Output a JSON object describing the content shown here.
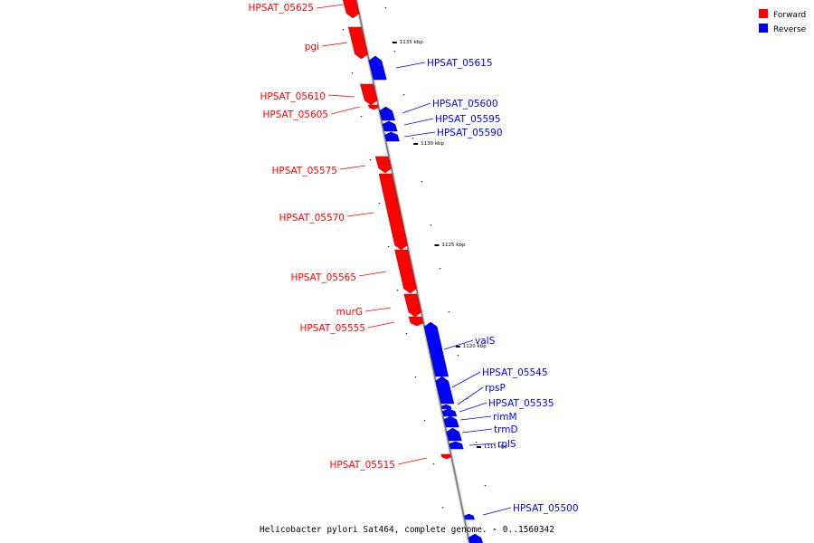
{
  "caption": "Helicobacter pylori Sat464, complete genome. - 0..1560342",
  "legend": [
    {
      "label": "Forward",
      "color": "#ff0000"
    },
    {
      "label": "Reverse",
      "color": "#0000ff"
    }
  ],
  "colors": {
    "forward": "#ff0000",
    "reverse": "#0000ff",
    "backbone": "#808080"
  },
  "tick_labels": [
    "1135 kbp",
    "1130 kbp",
    "1125 kbp",
    "1120 kbp",
    "1115 kbp"
  ],
  "genes": [
    {
      "label": "HPSAT_05625",
      "strand": "forward"
    },
    {
      "label": "pgi",
      "strand": "forward"
    },
    {
      "label": "HPSAT_05615",
      "strand": "reverse"
    },
    {
      "label": "HPSAT_05610",
      "strand": "forward"
    },
    {
      "label": "HPSAT_05605",
      "strand": "forward"
    },
    {
      "label": "HPSAT_05600",
      "strand": "reverse"
    },
    {
      "label": "HPSAT_05595",
      "strand": "reverse"
    },
    {
      "label": "HPSAT_05590",
      "strand": "reverse"
    },
    {
      "label": "HPSAT_05575",
      "strand": "forward"
    },
    {
      "label": "HPSAT_05570",
      "strand": "forward"
    },
    {
      "label": "HPSAT_05565",
      "strand": "forward"
    },
    {
      "label": "murG",
      "strand": "forward"
    },
    {
      "label": "HPSAT_05555",
      "strand": "forward"
    },
    {
      "label": "valS",
      "strand": "reverse"
    },
    {
      "label": "HPSAT_05545",
      "strand": "reverse"
    },
    {
      "label": "rpsP",
      "strand": "reverse"
    },
    {
      "label": "HPSAT_05535",
      "strand": "reverse"
    },
    {
      "label": "rimM",
      "strand": "reverse"
    },
    {
      "label": "trmD",
      "strand": "reverse"
    },
    {
      "label": "rplS",
      "strand": "reverse"
    },
    {
      "label": "HPSAT_05515",
      "strand": "forward"
    },
    {
      "label": "HPSAT_05500",
      "strand": "reverse"
    }
  ]
}
